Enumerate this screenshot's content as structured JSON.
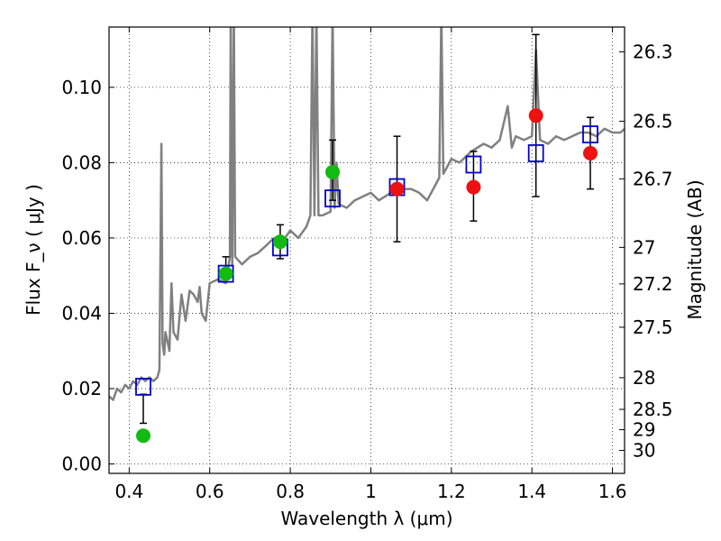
{
  "chart_data": {
    "type": "scatter",
    "xlabel": "Wavelength  λ (μm)",
    "ylabel": "Flux  F_ν  ( μJy )",
    "ylabel_right": "Magnitude (AB)",
    "xlim": [
      0.35,
      1.63
    ],
    "ylim": [
      -0.0025,
      0.116
    ],
    "grid": true,
    "x_ticks": [
      0.4,
      0.6,
      0.8,
      1.0,
      1.2,
      1.4,
      1.6
    ],
    "x_tick_labels": [
      "0.4",
      "0.6",
      "0.8",
      "1",
      "1.2",
      "1.4",
      "1.6"
    ],
    "y_ticks": [
      0.0,
      0.02,
      0.04,
      0.06,
      0.08,
      0.1
    ],
    "y_tick_labels": [
      "0.00",
      "0.02",
      "0.04",
      "0.06",
      "0.08",
      "0.10"
    ],
    "right_ticks": [
      {
        "label": "26.3",
        "flux": 0.1094
      },
      {
        "label": "26.5",
        "flux": 0.091
      },
      {
        "label": "26.7",
        "flux": 0.0757
      },
      {
        "label": "27",
        "flux": 0.0575
      },
      {
        "label": "27.2",
        "flux": 0.0478
      },
      {
        "label": "27.5",
        "flux": 0.0363
      },
      {
        "label": "28",
        "flux": 0.0229
      },
      {
        "label": "28.5",
        "flux": 0.0145
      },
      {
        "label": "29",
        "flux": 0.0091
      },
      {
        "label": "30",
        "flux": 0.0036
      }
    ],
    "colors": {
      "spectrum": "#808080",
      "model_marker": "#0000cc",
      "green": "#11bb11",
      "red": "#ee1111",
      "error_bar": "#000000"
    },
    "series": [
      {
        "kind": "line",
        "x": [
          0.35,
          0.36,
          0.37,
          0.38,
          0.39,
          0.4,
          0.41,
          0.42,
          0.43,
          0.44,
          0.45,
          0.46,
          0.47,
          0.475,
          0.48,
          0.483,
          0.487,
          0.49,
          0.5,
          0.505,
          0.51,
          0.52,
          0.53,
          0.54,
          0.55,
          0.56,
          0.57,
          0.575,
          0.58,
          0.59,
          0.6,
          0.62,
          0.64,
          0.65,
          0.652,
          0.656,
          0.66,
          0.663,
          0.68,
          0.7,
          0.72,
          0.74,
          0.76,
          0.78,
          0.8,
          0.82,
          0.84,
          0.85,
          0.855,
          0.86,
          0.865,
          0.87,
          0.88,
          0.9,
          0.905,
          0.91,
          0.915,
          0.92,
          0.94,
          0.96,
          0.98,
          1.0,
          1.02,
          1.05,
          1.08,
          1.1,
          1.12,
          1.14,
          1.16,
          1.17,
          1.175,
          1.18,
          1.19,
          1.2,
          1.22,
          1.25,
          1.28,
          1.3,
          1.32,
          1.34,
          1.35,
          1.36,
          1.38,
          1.4,
          1.41,
          1.42,
          1.44,
          1.46,
          1.48,
          1.5,
          1.52,
          1.54,
          1.56,
          1.58,
          1.6,
          1.62,
          1.63
        ],
        "y": [
          0.018,
          0.017,
          0.02,
          0.019,
          0.021,
          0.02,
          0.022,
          0.021,
          0.023,
          0.022,
          0.023,
          0.022,
          0.023,
          0.025,
          0.085,
          0.032,
          0.029,
          0.035,
          0.03,
          0.048,
          0.035,
          0.033,
          0.045,
          0.038,
          0.046,
          0.045,
          0.043,
          0.047,
          0.04,
          0.038,
          0.048,
          0.049,
          0.048,
          0.055,
          0.12,
          0.053,
          0.12,
          0.055,
          0.053,
          0.055,
          0.056,
          0.058,
          0.06,
          0.059,
          0.062,
          0.06,
          0.063,
          0.066,
          0.12,
          0.066,
          0.12,
          0.066,
          0.066,
          0.067,
          0.12,
          0.068,
          0.08,
          0.069,
          0.068,
          0.07,
          0.071,
          0.072,
          0.07,
          0.072,
          0.073,
          0.073,
          0.072,
          0.07,
          0.074,
          0.076,
          0.12,
          0.077,
          0.079,
          0.081,
          0.08,
          0.083,
          0.085,
          0.084,
          0.086,
          0.095,
          0.084,
          0.087,
          0.086,
          0.087,
          0.11,
          0.086,
          0.085,
          0.087,
          0.086,
          0.087,
          0.088,
          0.088,
          0.087,
          0.089,
          0.088,
          0.088,
          0.089
        ]
      },
      {
        "kind": "open-square",
        "x": [
          0.435,
          0.64,
          0.775,
          0.905,
          1.065,
          1.255,
          1.41,
          1.545
        ],
        "y": [
          0.0205,
          0.0505,
          0.0575,
          0.0705,
          0.0735,
          0.0795,
          0.0825,
          0.0875
        ]
      },
      {
        "kind": "filled-circle",
        "color_key": "green",
        "x": [
          0.435,
          0.64,
          0.775,
          0.905
        ],
        "y": [
          0.0075,
          0.0505,
          0.059,
          0.0775
        ],
        "yerr_low": [
          0.0108,
          0.0505,
          0.0545,
          0.07
        ],
        "yerr_high": [
          0.0185,
          0.055,
          0.0635,
          0.086
        ]
      },
      {
        "kind": "filled-circle",
        "color_key": "red",
        "x": [
          1.065,
          1.255,
          1.41,
          1.545
        ],
        "y": [
          0.073,
          0.0735,
          0.0925,
          0.0825
        ],
        "yerr_low": [
          0.059,
          0.0645,
          0.071,
          0.073
        ],
        "yerr_high": [
          0.087,
          0.083,
          0.114,
          0.092
        ]
      }
    ]
  }
}
